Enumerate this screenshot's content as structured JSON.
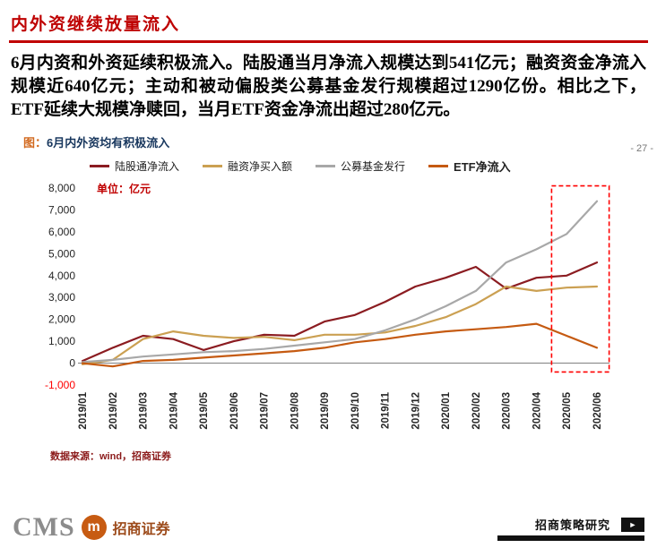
{
  "page": {
    "title": "内外资继续放量流入",
    "page_number": "- 27 -",
    "paragraph": "6月内资和外资延续积极流入。陆股通当月净流入规模达到541亿元；融资资金净流入规模近640亿元；主动和被动偏股类公募基金发行规模超过1290亿份。相比之下，ETF延续大规模净赎回，当月ETF资金净流出超过280亿元。"
  },
  "chart": {
    "caption_prefix": "图：",
    "caption": "6月内外资均有积极流入",
    "unit_label": "单位：亿元",
    "source": "数据来源：wind，招商证券"
  },
  "chart_data": {
    "type": "line",
    "title": "6月内外资均有积极流入",
    "unit": "亿元",
    "x": [
      "2019/01",
      "2019/02",
      "2019/03",
      "2019/04",
      "2019/05",
      "2019/06",
      "2019/07",
      "2019/08",
      "2019/09",
      "2019/10",
      "2019/11",
      "2019/12",
      "2020/01",
      "2020/02",
      "2020/03",
      "2020/04",
      "2020/05",
      "2020/06"
    ],
    "series": [
      {
        "name": "陆股通净流入",
        "color": "#8B1C21",
        "values": [
          100,
          700,
          1250,
          1100,
          600,
          1000,
          1300,
          1250,
          1900,
          2200,
          2800,
          3500,
          3900,
          4400,
          3400,
          3900,
          4000,
          4600
        ]
      },
      {
        "name": "融资净买入额",
        "color": "#CBA052",
        "values": [
          -50,
          150,
          1100,
          1450,
          1250,
          1150,
          1200,
          1050,
          1300,
          1300,
          1400,
          1700,
          2100,
          2700,
          3500,
          3300,
          3450,
          3500
        ]
      },
      {
        "name": "公募基金发行",
        "color": "#A8A8A8",
        "values": [
          50,
          150,
          300,
          400,
          500,
          550,
          650,
          800,
          950,
          1100,
          1500,
          2000,
          2600,
          3300,
          4600,
          5200,
          5900,
          7400
        ]
      },
      {
        "name": "ETF净流入",
        "color": "#C55A11",
        "values": [
          0,
          -150,
          100,
          150,
          250,
          350,
          450,
          550,
          700,
          950,
          1100,
          1300,
          1450,
          1550,
          1650,
          1800,
          1250,
          700
        ]
      }
    ],
    "ylim": [
      -1000,
      8000
    ],
    "ytick_step": 1000,
    "yticks": [
      "8,000",
      "7,000",
      "6,000",
      "5,000",
      "4,000",
      "3,000",
      "2,000",
      "1,000",
      "0",
      "-1,000"
    ],
    "negative_tick_color": "#FF0000",
    "grid": false,
    "legend_position": "top",
    "highlight_box": {
      "x_start_index": 15.5,
      "x_end_index": 17.4,
      "y_min": -400,
      "y_max": 8100,
      "color": "#FF0000"
    }
  },
  "footer": {
    "brand_letters": "CMS",
    "logo_glyph": "m",
    "brand_name": "招商证券",
    "wechat_label": "招商策略研究",
    "arrow_glyph": "►",
    "brand_color": "#C75B12"
  }
}
